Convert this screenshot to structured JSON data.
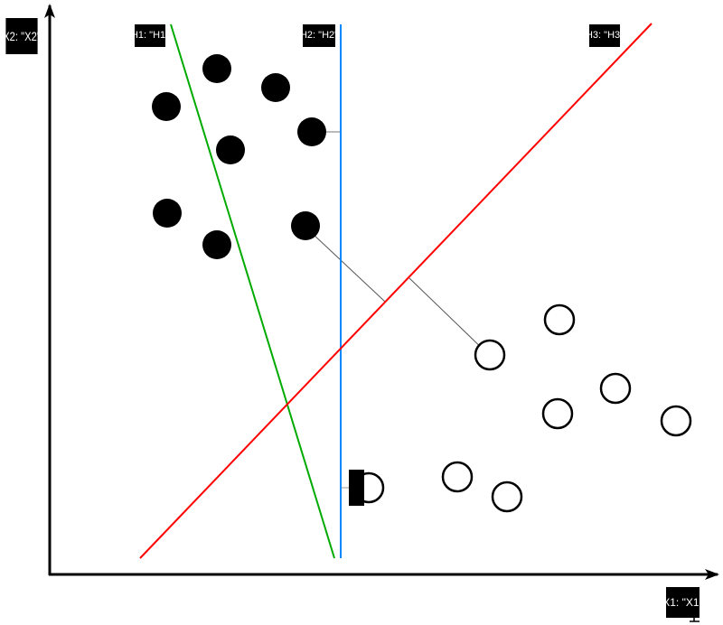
{
  "labels": {
    "x2": "X2: \"X2\"",
    "x1": "X1: \"X1\"",
    "h1": "H1: \"H1\"",
    "h2": "H2: \"H2\"",
    "h3": "H3: \"H3\""
  },
  "colors": {
    "h1": "#00aa00",
    "h2": "#0088ff",
    "h3": "#ff0000",
    "class_filled": "#000000",
    "class_open": "#ffffff"
  }
}
